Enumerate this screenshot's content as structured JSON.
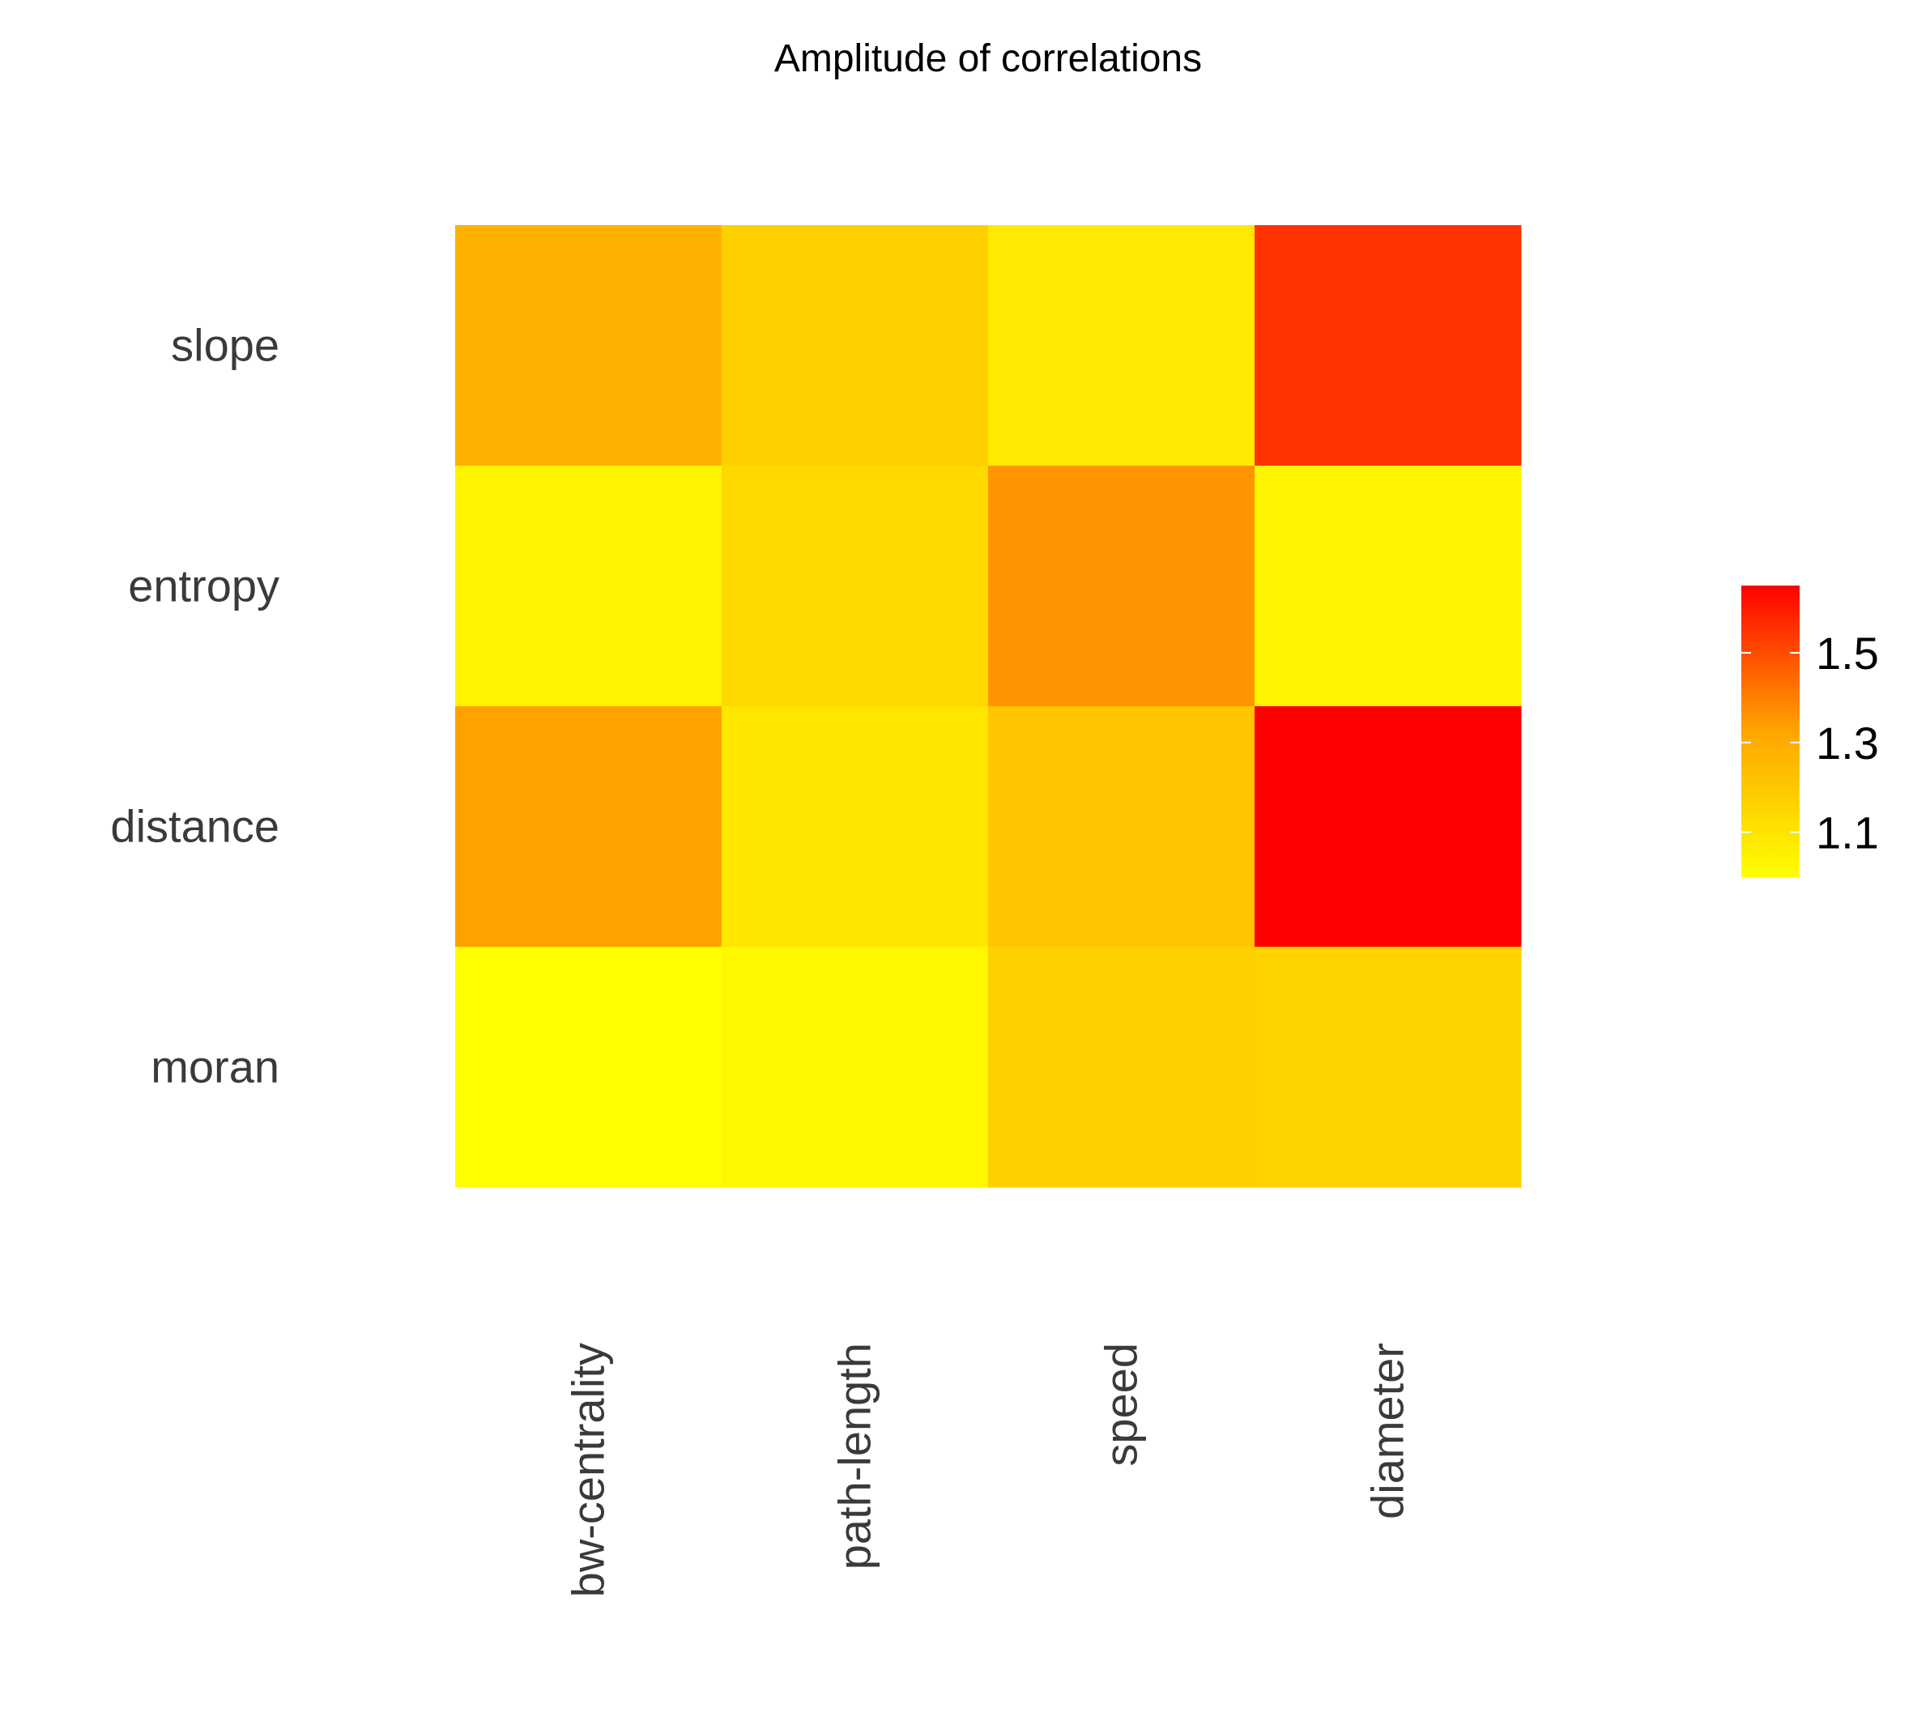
{
  "chart_data": {
    "type": "heatmap",
    "title": "Amplitude of correlations",
    "rows": [
      "slope",
      "entropy",
      "distance",
      "moran"
    ],
    "columns": [
      "bw-centrality",
      "path-length",
      "speed",
      "diameter"
    ],
    "values": [
      [
        1.28,
        1.17,
        1.08,
        1.55
      ],
      [
        1.04,
        1.14,
        1.36,
        1.04
      ],
      [
        1.33,
        1.09,
        1.21,
        1.65
      ],
      [
        1.0,
        1.03,
        1.17,
        1.16
      ]
    ],
    "legend": {
      "position": "right",
      "min": 1.0,
      "max": 1.65,
      "ticks": [
        1.1,
        1.3,
        1.5
      ],
      "tick_labels": [
        "1.1",
        "1.3",
        "1.5"
      ],
      "color_low": "#FFFF00",
      "color_mid": "#FFA500",
      "color_high": "#FF0000"
    },
    "grid": false
  }
}
